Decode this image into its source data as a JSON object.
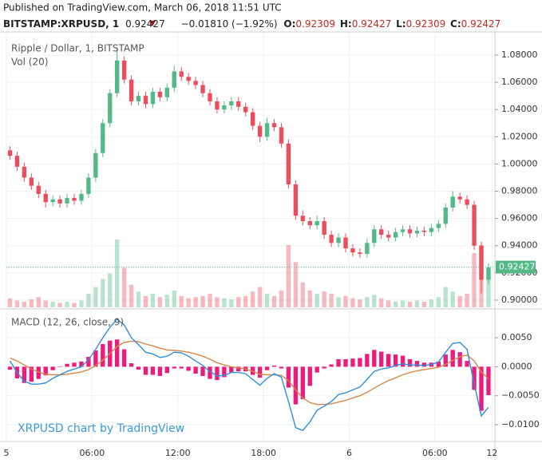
{
  "header": {
    "published": "Published on TradingView.com, March 06, 2018 11:51 UTC",
    "symbol": "BITSTAMP:XRPUSD, 1",
    "last": "0.92427",
    "change": "−0.01810 (−1.92%)",
    "o_label": "O:",
    "o": "0.92309",
    "h_label": "H:",
    "h": "0.92427",
    "l_label": "L:",
    "l": "0.92309",
    "c_label": "C:",
    "c": "0.92427"
  },
  "chart_data": {
    "type": "candlestick",
    "title": "Ripple / Dollar, 1, BITSTAMP",
    "watermark": "XRPUSD chart by TradingView",
    "up_color": "#53b987",
    "down_color": "#eb4d5c",
    "grid": true,
    "x": [
      0.25,
      0.75,
      1.25,
      1.75,
      2.25,
      2.75,
      3.25,
      3.75,
      4.25,
      4.75,
      5.25,
      5.75,
      6.25,
      6.75,
      7.25,
      7.75,
      8.25,
      8.75,
      9.25,
      9.75,
      10.25,
      10.75,
      11.25,
      11.75,
      12.25,
      12.75,
      13.25,
      13.75,
      14.25,
      14.75,
      15.25,
      15.75,
      16.25,
      16.75,
      17.25,
      17.75,
      18.25,
      18.75,
      19.25,
      19.75,
      20.25,
      20.75,
      21.25,
      21.75,
      22.25,
      22.75,
      23.25,
      23.75,
      24.25,
      24.75,
      25.25,
      25.75,
      26.25,
      26.75,
      27.25,
      27.75,
      28.25,
      28.75,
      29.25,
      29.75,
      30.25,
      30.75,
      31.25,
      31.75,
      32.25,
      32.75,
      33.25,
      33.75
    ],
    "open": [
      1.01,
      1.006,
      0.998,
      0.99,
      0.984,
      0.978,
      0.972,
      0.974,
      0.971,
      0.975,
      0.973,
      0.978,
      0.99,
      1.008,
      1.03,
      1.052,
      1.076,
      1.062,
      1.046,
      1.05,
      1.044,
      1.053,
      1.049,
      1.056,
      1.068,
      1.064,
      1.061,
      1.058,
      1.052,
      1.046,
      1.04,
      1.043,
      1.046,
      1.042,
      1.038,
      1.028,
      1.02,
      1.03,
      1.027,
      1.015,
      0.985,
      0.962,
      0.958,
      0.955,
      0.958,
      0.948,
      0.942,
      0.946,
      0.938,
      0.935,
      0.934,
      0.942,
      0.952,
      0.948,
      0.946,
      0.95,
      0.952,
      0.949,
      0.951,
      0.95,
      0.953,
      0.956,
      0.968,
      0.976,
      0.974,
      0.97,
      0.94,
      0.915
    ],
    "high": [
      1.013,
      1.009,
      1.001,
      0.993,
      0.987,
      0.981,
      0.977,
      0.977,
      0.978,
      0.978,
      0.981,
      0.993,
      1.011,
      1.033,
      1.055,
      1.085,
      1.079,
      1.065,
      1.053,
      1.053,
      1.056,
      1.056,
      1.059,
      1.072,
      1.071,
      1.067,
      1.064,
      1.061,
      1.055,
      1.049,
      1.046,
      1.049,
      1.049,
      1.045,
      1.041,
      1.031,
      1.034,
      1.033,
      1.03,
      1.018,
      0.988,
      0.966,
      0.961,
      0.962,
      0.961,
      0.951,
      0.949,
      0.949,
      0.941,
      0.938,
      0.945,
      0.955,
      0.955,
      0.951,
      0.953,
      0.955,
      0.955,
      0.954,
      0.954,
      0.956,
      0.959,
      0.971,
      0.98,
      0.979,
      0.977,
      0.973,
      0.943,
      0.927
    ],
    "low": [
      1.003,
      0.995,
      0.987,
      0.981,
      0.975,
      0.968,
      0.969,
      0.968,
      0.968,
      0.97,
      0.97,
      0.975,
      0.987,
      1.005,
      1.027,
      1.049,
      1.059,
      1.043,
      1.043,
      1.041,
      1.041,
      1.046,
      1.046,
      1.053,
      1.061,
      1.058,
      1.055,
      1.049,
      1.043,
      1.037,
      1.037,
      1.04,
      1.039,
      1.035,
      1.025,
      1.016,
      1.017,
      1.024,
      1.012,
      0.982,
      0.959,
      0.955,
      0.952,
      0.952,
      0.945,
      0.939,
      0.939,
      0.935,
      0.932,
      0.931,
      0.931,
      0.939,
      0.945,
      0.943,
      0.943,
      0.947,
      0.946,
      0.946,
      0.947,
      0.947,
      0.95,
      0.953,
      0.965,
      0.971,
      0.967,
      0.937,
      0.905,
      0.912
    ],
    "close": [
      1.006,
      0.998,
      0.99,
      0.984,
      0.978,
      0.972,
      0.974,
      0.971,
      0.975,
      0.973,
      0.978,
      0.99,
      1.008,
      1.03,
      1.052,
      1.076,
      1.062,
      1.046,
      1.05,
      1.044,
      1.053,
      1.049,
      1.056,
      1.068,
      1.064,
      1.061,
      1.058,
      1.052,
      1.046,
      1.04,
      1.043,
      1.046,
      1.042,
      1.038,
      1.028,
      1.02,
      1.03,
      1.027,
      1.015,
      0.985,
      0.962,
      0.958,
      0.955,
      0.958,
      0.948,
      0.942,
      0.946,
      0.938,
      0.935,
      0.934,
      0.942,
      0.952,
      0.948,
      0.946,
      0.95,
      0.952,
      0.949,
      0.951,
      0.95,
      0.953,
      0.956,
      0.968,
      0.976,
      0.974,
      0.97,
      0.94,
      0.915,
      0.924
    ],
    "last_price": 0.92427,
    "last_color": "#53b987",
    "xlim": [
      0,
      34.2
    ],
    "xticks": [
      {
        "value": 0,
        "label": "5"
      },
      {
        "value": 6,
        "label": "06:00"
      },
      {
        "value": 12,
        "label": "12:00"
      },
      {
        "value": 18,
        "label": "18:00"
      },
      {
        "value": 24,
        "label": "6"
      },
      {
        "value": 30,
        "label": "06:00"
      },
      {
        "value": 34,
        "label": "12"
      }
    ],
    "ylim": [
      0.8947,
      1.0958
    ],
    "yticks": [
      {
        "value": 0.9,
        "label": "0.90000"
      },
      {
        "value": 0.92,
        "label": "0.92000"
      },
      {
        "value": 0.94,
        "label": "0.94000"
      },
      {
        "value": 0.96,
        "label": "0.96000"
      },
      {
        "value": 0.98,
        "label": "0.98000"
      },
      {
        "value": 1.0,
        "label": "1.00000"
      },
      {
        "value": 1.02,
        "label": "1.02000"
      },
      {
        "value": 1.04,
        "label": "1.04000"
      },
      {
        "value": 1.06,
        "label": "1.06000"
      },
      {
        "value": 1.08,
        "label": "1.08000"
      }
    ],
    "volume": {
      "name": "Vol (20)",
      "values": [
        8,
        6,
        5,
        7,
        9,
        6,
        5,
        4,
        5,
        4,
        6,
        12,
        18,
        25,
        30,
        60,
        35,
        20,
        14,
        10,
        12,
        9,
        11,
        15,
        10,
        8,
        9,
        10,
        12,
        9,
        8,
        7,
        9,
        10,
        14,
        18,
        12,
        10,
        15,
        55,
        40,
        22,
        15,
        12,
        14,
        12,
        9,
        10,
        8,
        7,
        9,
        11,
        8,
        6,
        5,
        6,
        5,
        6,
        5,
        7,
        9,
        18,
        14,
        10,
        12,
        48,
        55,
        25
      ]
    },
    "macd": {
      "name": "MACD (12, 26, close, 9)",
      "ylim": [
        -0.01275,
        0.00955
      ],
      "yticks": [
        {
          "value": 0.005,
          "label": "0.0050"
        },
        {
          "value": 0,
          "label": "0.0000"
        },
        {
          "value": -0.005,
          "label": "−0.0050"
        },
        {
          "value": -0.01,
          "label": "−0.0100"
        }
      ],
      "macd_color": "#2f8fde",
      "signal_color": "#d4884a",
      "hist_color": "#ec1c7e",
      "macd": [
        0.001,
        -0.001,
        -0.0025,
        -0.003,
        -0.003,
        -0.0028,
        -0.002,
        -0.0014,
        -0.0008,
        -0.0004,
        0.0,
        0.0012,
        0.003,
        0.005,
        0.0068,
        0.0082,
        0.0072,
        0.005,
        0.0038,
        0.0025,
        0.0022,
        0.0016,
        0.0018,
        0.0025,
        0.0024,
        0.0018,
        0.001,
        0.0002,
        -0.0008,
        -0.0016,
        -0.0015,
        -0.001,
        -0.001,
        -0.0012,
        -0.0022,
        -0.0032,
        -0.002,
        -0.0012,
        -0.0018,
        -0.006,
        -0.0105,
        -0.011,
        -0.0095,
        -0.0075,
        -0.0068,
        -0.006,
        -0.0048,
        -0.0045,
        -0.004,
        -0.0035,
        -0.0022,
        -0.0008,
        -0.0004,
        -0.0002,
        0.0002,
        0.0005,
        0.0003,
        0.0003,
        0.0002,
        0.0004,
        0.0008,
        0.0025,
        0.004,
        0.0042,
        0.003,
        -0.003,
        -0.0085,
        -0.007
      ],
      "signal": [
        0.0015,
        0.001,
        0.0003,
        -0.0004,
        -0.0009,
        -0.0013,
        -0.0014,
        -0.0014,
        -0.0013,
        -0.0011,
        -0.0009,
        -0.0005,
        0.0002,
        0.0011,
        0.0023,
        0.0035,
        0.0042,
        0.0044,
        0.0043,
        0.0039,
        0.0036,
        0.0032,
        0.0029,
        0.0028,
        0.0027,
        0.0025,
        0.0022,
        0.0018,
        0.0013,
        0.0007,
        0.0003,
        0.0,
        -0.0002,
        -0.0004,
        -0.0008,
        -0.0013,
        -0.0014,
        -0.0014,
        -0.0015,
        -0.0024,
        -0.004,
        -0.0054,
        -0.0062,
        -0.0065,
        -0.0065,
        -0.0064,
        -0.0061,
        -0.0058,
        -0.0054,
        -0.005,
        -0.0044,
        -0.0037,
        -0.003,
        -0.0024,
        -0.0019,
        -0.0014,
        -0.001,
        -0.0007,
        -0.0005,
        -0.0003,
        -0.0001,
        0.0004,
        0.0011,
        0.0017,
        0.002,
        0.001,
        -0.0009,
        -0.0021
      ],
      "histogram": [
        -0.0005,
        -0.002,
        -0.0028,
        -0.0026,
        -0.0021,
        -0.0015,
        -0.0006,
        0.0,
        0.0005,
        0.0007,
        0.0009,
        0.0017,
        0.0028,
        0.0039,
        0.0045,
        0.0047,
        0.003,
        0.0006,
        -0.0005,
        -0.0014,
        -0.0014,
        -0.0016,
        -0.0011,
        -0.0003,
        -0.0003,
        -0.0007,
        -0.0012,
        -0.0016,
        -0.0021,
        -0.0023,
        -0.0018,
        -0.001,
        -0.0008,
        -0.0008,
        -0.0014,
        -0.0019,
        -0.0006,
        0.0002,
        -0.0003,
        -0.0036,
        -0.0065,
        -0.0056,
        -0.0033,
        -0.001,
        -0.0003,
        0.0004,
        0.0013,
        0.0013,
        0.0014,
        0.0015,
        0.0022,
        0.0029,
        0.0026,
        0.0022,
        0.0021,
        0.0019,
        0.0013,
        0.001,
        0.0007,
        0.0007,
        0.0009,
        0.0021,
        0.0029,
        0.0025,
        0.001,
        -0.004,
        -0.0076,
        -0.0049
      ]
    }
  }
}
